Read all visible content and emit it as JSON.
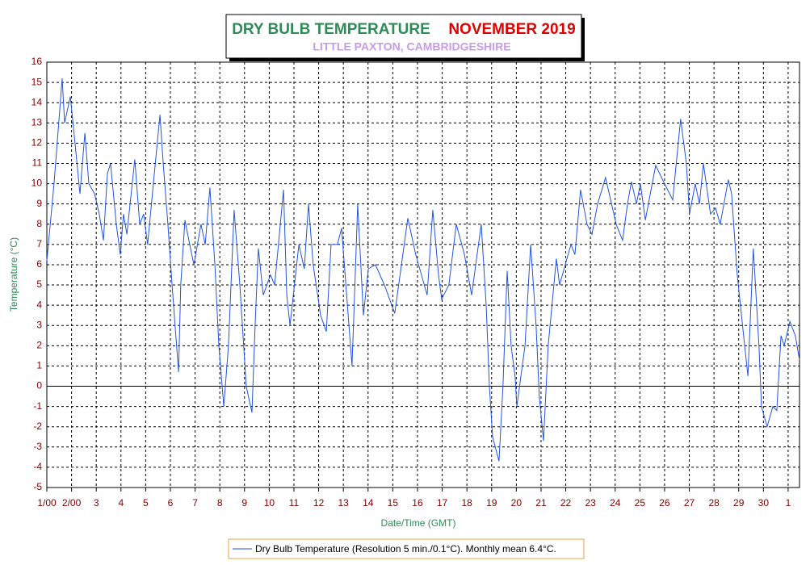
{
  "chart_data": {
    "type": "line",
    "title": "DRY BULB TEMPERATURE",
    "title_period": "NOVEMBER 2019",
    "subtitle": "LITTLE PAXTON, CAMBRIDGESHIRE",
    "x_label": "Date/Time (GMT)",
    "y_label": "Temperature (°C)",
    "xlim": [
      0,
      30.46
    ],
    "ylim": [
      -5,
      16
    ],
    "xticks": [
      {
        "value": 0,
        "label": "1/00"
      },
      {
        "value": 1,
        "label": "2/00"
      },
      {
        "value": 2,
        "label": "3"
      },
      {
        "value": 3,
        "label": "4"
      },
      {
        "value": 4,
        "label": "5"
      },
      {
        "value": 5,
        "label": "6"
      },
      {
        "value": 6,
        "label": "7"
      },
      {
        "value": 7,
        "label": "8"
      },
      {
        "value": 8,
        "label": "9"
      },
      {
        "value": 9,
        "label": "10"
      },
      {
        "value": 10,
        "label": "11"
      },
      {
        "value": 11,
        "label": "12"
      },
      {
        "value": 12,
        "label": "13"
      },
      {
        "value": 13,
        "label": "14"
      },
      {
        "value": 14,
        "label": "15"
      },
      {
        "value": 15,
        "label": "16"
      },
      {
        "value": 16,
        "label": "17"
      },
      {
        "value": 17,
        "label": "18"
      },
      {
        "value": 18,
        "label": "19"
      },
      {
        "value": 19,
        "label": "20"
      },
      {
        "value": 20,
        "label": "21"
      },
      {
        "value": 21,
        "label": "22"
      },
      {
        "value": 22,
        "label": "23"
      },
      {
        "value": 23,
        "label": "24"
      },
      {
        "value": 24,
        "label": "25"
      },
      {
        "value": 25,
        "label": "26"
      },
      {
        "value": 26,
        "label": "27"
      },
      {
        "value": 27,
        "label": "28"
      },
      {
        "value": 28,
        "label": "29"
      },
      {
        "value": 29,
        "label": "30"
      },
      {
        "value": 30,
        "label": "1"
      }
    ],
    "yticks": [
      -5,
      -4,
      -3,
      -2,
      -1,
      0,
      1,
      2,
      3,
      4,
      5,
      6,
      7,
      8,
      9,
      10,
      11,
      12,
      13,
      14,
      15,
      16
    ],
    "grid": true,
    "x": [
      0,
      0.29,
      0.62,
      0.72,
      0.95,
      1.14,
      1.34,
      1.54,
      1.7,
      1.93,
      2.12,
      2.29,
      2.45,
      2.58,
      2.81,
      2.97,
      3.1,
      3.24,
      3.56,
      3.76,
      3.92,
      4.08,
      4.31,
      4.58,
      4.71,
      4.9,
      5.07,
      5.33,
      5.42,
      5.59,
      5.78,
      5.95,
      6.24,
      6.41,
      6.6,
      6.8,
      6.96,
      7.16,
      7.35,
      7.58,
      7.81,
      8.07,
      8.3,
      8.43,
      8.56,
      8.76,
      9.05,
      9.22,
      9.58,
      9.71,
      9.84,
      10.2,
      10.42,
      10.59,
      10.78,
      11.08,
      11.31,
      11.5,
      11.76,
      11.93,
      12.35,
      12.48,
      12.58,
      12.81,
      13.01,
      13.3,
      13.66,
      14.08,
      14.35,
      14.61,
      14.93,
      15.39,
      15.62,
      15.85,
      15.98,
      16.27,
      16.57,
      16.9,
      17.19,
      17.58,
      17.78,
      17.91,
      18.04,
      18.3,
      18.46,
      18.63,
      18.79,
      18.95,
      19.02,
      19.35,
      19.58,
      19.8,
      19.93,
      20.1,
      20.29,
      20.62,
      20.75,
      21.21,
      21.37,
      21.6,
      21.86,
      22.06,
      22.29,
      22.61,
      23.04,
      23.3,
      23.5,
      23.66,
      23.86,
      24.02,
      24.22,
      24.64,
      25.0,
      25.33,
      25.65,
      25.88,
      26.01,
      26.24,
      26.41,
      26.57,
      26.86,
      27.06,
      27.25,
      27.58,
      27.71,
      27.94,
      28.24,
      28.37,
      28.59,
      28.82,
      28.92,
      29.15,
      29.38,
      29.54,
      29.71,
      29.84,
      30.07,
      30.29,
      30.46
    ],
    "series": [
      {
        "name": "Dry Bulb Temperature (Resolution 5 min./0.1°C). Monthly mean 6.4°C.",
        "color": "#2255dd",
        "values": [
          6.2,
          10,
          15.2,
          13,
          14.3,
          12,
          9.5,
          12.5,
          10,
          9.5,
          8.5,
          7.2,
          10.5,
          11,
          8,
          6.5,
          8.5,
          7.5,
          11.2,
          8,
          8.5,
          7,
          10,
          13.4,
          11,
          8,
          5,
          0.7,
          5,
          8.2,
          7,
          6,
          8,
          7,
          9.8,
          6,
          2,
          -1,
          2,
          8.7,
          5,
          0,
          -1.3,
          3,
          6.8,
          4.5,
          5.5,
          5,
          9.7,
          4.5,
          3,
          7,
          5.8,
          9,
          6,
          3.5,
          2.7,
          7,
          7,
          7.8,
          1,
          5.5,
          9,
          3.5,
          5.8,
          6,
          5,
          3.6,
          6,
          8.3,
          6.5,
          4.5,
          8.7,
          5.5,
          4.3,
          5,
          8,
          6.5,
          4.5,
          8,
          4,
          0,
          -2.5,
          -3.7,
          0,
          5.7,
          2,
          0.5,
          -1,
          2,
          7,
          3,
          -0.5,
          -2.7,
          2,
          6.3,
          5,
          7,
          6.5,
          9.7,
          8,
          7.5,
          9,
          10.3,
          8,
          7.2,
          9,
          10.1,
          9,
          10,
          8.2,
          10.9,
          10,
          9.2,
          13.2,
          11,
          8.5,
          10,
          9,
          11,
          8.5,
          8.8,
          8,
          10.2,
          9.5,
          5.5,
          2,
          0.5,
          6.8,
          2,
          -1,
          -2,
          -1,
          -1.2,
          2.5,
          2,
          3.2,
          2.5,
          1.3
        ]
      }
    ]
  }
}
